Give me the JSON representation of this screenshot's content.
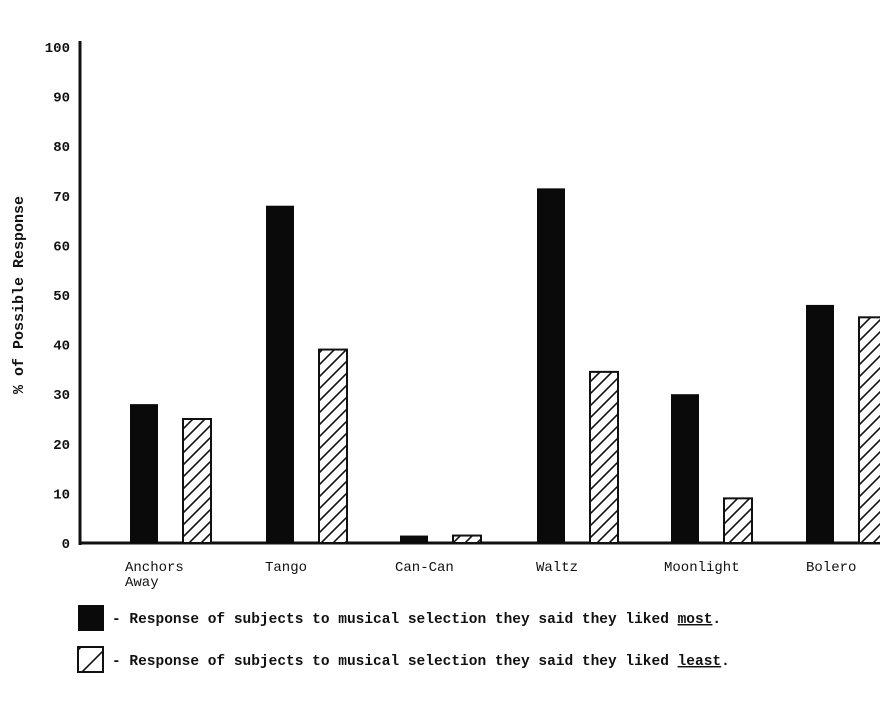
{
  "chart_data": {
    "type": "bar",
    "ylabel": "% of Possible Response",
    "ylim": [
      0,
      100
    ],
    "yticks": [
      "0",
      "10",
      "20",
      "30",
      "40",
      "50",
      "60",
      "70",
      "80",
      "90",
      "100"
    ],
    "categories": [
      [
        "Anchors",
        "Away"
      ],
      [
        "Tango"
      ],
      [
        "Can-Can"
      ],
      [
        "Waltz"
      ],
      [
        "Moonlight"
      ],
      [
        "Bolero"
      ]
    ],
    "series": [
      {
        "key": "most",
        "values": [
          28,
          68,
          1.5,
          71.5,
          30,
          48
        ]
      },
      {
        "key": "least",
        "values": [
          25,
          39,
          1.5,
          34.5,
          9,
          45.5
        ]
      }
    ],
    "legend": [
      {
        "key": "most",
        "text": "- Response of subjects to musical selection they said they liked ",
        "emph": "most",
        "end": "."
      },
      {
        "key": "least",
        "text": "- Response of subjects to musical selection they said they liked ",
        "emph": "least",
        "end": "."
      }
    ],
    "colors": {
      "most": "#0a0a0a",
      "least_stroke": "#111111",
      "background": "#ffffff"
    }
  }
}
